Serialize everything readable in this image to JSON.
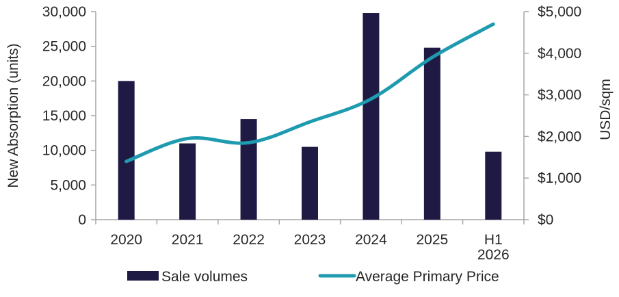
{
  "chart_data": {
    "type": "bar",
    "categories": [
      "2020",
      "2021",
      "2022",
      "2023",
      "2024",
      "2025",
      "H1\n2026"
    ],
    "category_lines": [
      [
        "2020"
      ],
      [
        "2021"
      ],
      [
        "2022"
      ],
      [
        "2023"
      ],
      [
        "2024"
      ],
      [
        "2025"
      ],
      [
        "H1",
        "2026"
      ]
    ],
    "series": [
      {
        "name": "Sale volumes",
        "type": "bar",
        "axis": "left",
        "color": "#1f1a44",
        "values": [
          20000,
          11000,
          14500,
          10500,
          29800,
          24800,
          9800
        ]
      },
      {
        "name": "Average Primary Price",
        "type": "line",
        "axis": "right",
        "smooth": true,
        "color": "#1f9bb0",
        "values": [
          1400,
          1950,
          1850,
          2350,
          2900,
          3900,
          4700
        ]
      }
    ],
    "ylabel": "New Absorption (units)",
    "y2label": "USD/sqm",
    "ylim": [
      0,
      30000
    ],
    "y2lim": [
      0,
      5000
    ],
    "yticks": [
      "0",
      "5,000",
      "10,000",
      "15,000",
      "20,000",
      "25,000",
      "30,000"
    ],
    "y2ticks": [
      "$0",
      "$1,000",
      "$2,000",
      "$3,000",
      "$4,000",
      "$5,000"
    ],
    "grid": false,
    "legend": "bottom"
  }
}
